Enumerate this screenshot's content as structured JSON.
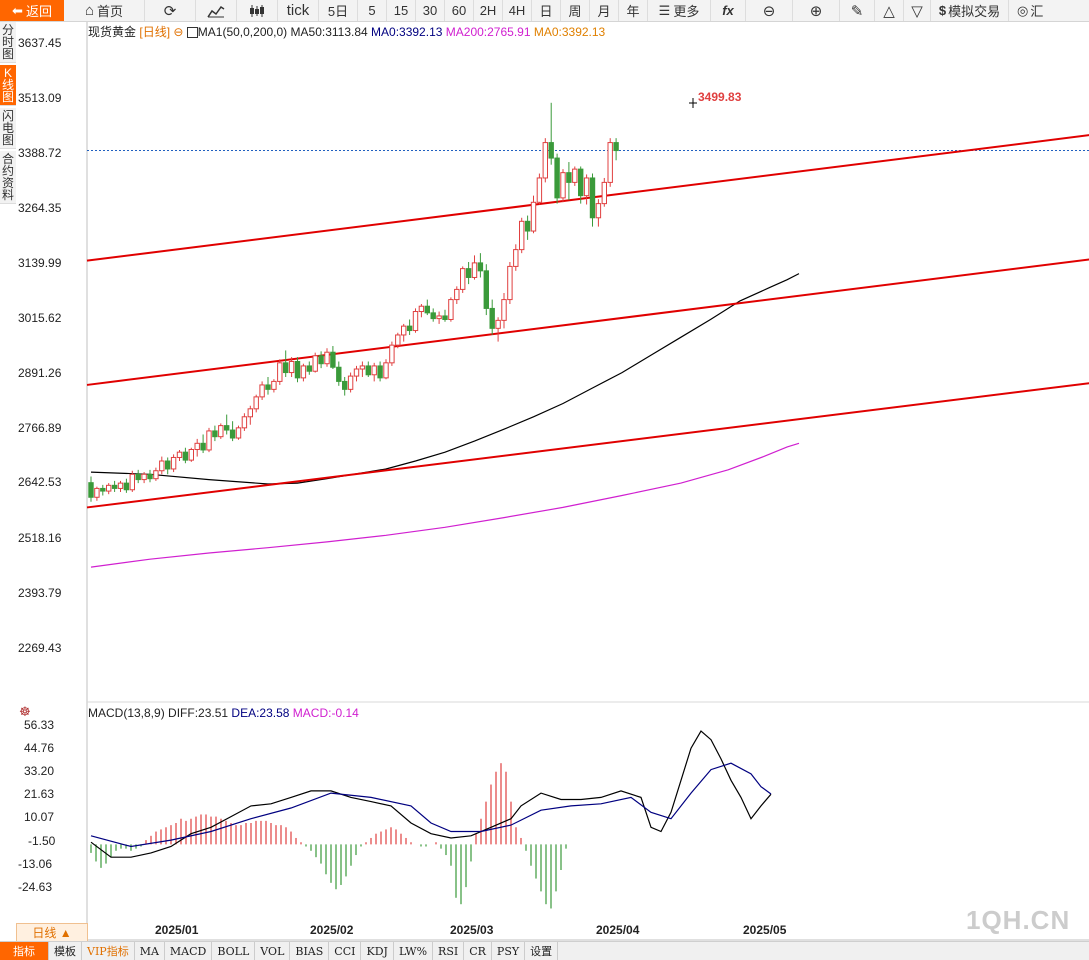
{
  "toolbar": {
    "back": "返回",
    "home": "首页",
    "tick": "tick",
    "periods": [
      "5日",
      "5",
      "15",
      "30",
      "60",
      "2H",
      "4H",
      "日",
      "周",
      "月",
      "年"
    ],
    "more": "更多",
    "fx": "fx",
    "simulated_trade": "模拟交易",
    "cut_label": "汇"
  },
  "side_tabs": [
    "分时图",
    "K线图",
    "闪电图",
    "合约资料"
  ],
  "main_chart": {
    "instrument": "现货黄金",
    "period_tag": "[日线]",
    "ma1": "MA1(50,0,200,0)",
    "ma50": "MA50:3113.84",
    "ma0a": "MA0:3392.13",
    "ma200": "MA200:2765.91",
    "ma0b": "MA0:3392.13",
    "high_label": "3499.83",
    "y_ticks": [
      "3637.45",
      "3513.09",
      "3388.72",
      "3264.35",
      "3139.99",
      "3015.62",
      "2891.26",
      "2766.89",
      "2642.53",
      "2518.16",
      "2393.79",
      "2269.43"
    ]
  },
  "macd": {
    "title": "MACD(13,8,9)",
    "diff": "DIFF:23.51",
    "dea": "DEA:23.58",
    "macd": "MACD:-0.14",
    "y_ticks": [
      "56.33",
      "44.76",
      "33.20",
      "21.63",
      "10.07",
      "-1.50",
      "-13.06",
      "-24.63"
    ]
  },
  "x_labels": [
    "2025/01",
    "2025/02",
    "2025/03",
    "2025/04",
    "2025/05"
  ],
  "bottom": {
    "period": "日线 ▲",
    "tabs": [
      "指标",
      "模板",
      "VIP指标",
      "MA",
      "MACD",
      "BOLL",
      "VOL",
      "BIAS",
      "CCI",
      "KDJ",
      "LW%",
      "RSI",
      "CR",
      "PSY",
      "设置"
    ]
  },
  "watermark": "1QH.CN",
  "colors": {
    "up": "#e04040",
    "down": "#3a9a3a",
    "trend": "#e00000",
    "ma50": "#000000",
    "ma200": "#d020d0",
    "accent": "#ff6600",
    "dea": "#000080"
  },
  "chart_data": {
    "type": "candlestick",
    "y_range": [
      2269.43,
      3637.45
    ],
    "last_close_level": 3392.13,
    "high_marker": 3499.83,
    "candles": [
      [
        2641,
        2655,
        2598,
        2608
      ],
      [
        2608,
        2632,
        2600,
        2628
      ],
      [
        2628,
        2636,
        2612,
        2622
      ],
      [
        2622,
        2640,
        2615,
        2635
      ],
      [
        2635,
        2645,
        2620,
        2628
      ],
      [
        2628,
        2645,
        2620,
        2640
      ],
      [
        2640,
        2650,
        2618,
        2625
      ],
      [
        2625,
        2668,
        2620,
        2660
      ],
      [
        2660,
        2670,
        2640,
        2648
      ],
      [
        2648,
        2665,
        2640,
        2660
      ],
      [
        2660,
        2670,
        2642,
        2650
      ],
      [
        2650,
        2675,
        2645,
        2668
      ],
      [
        2668,
        2700,
        2660,
        2690
      ],
      [
        2690,
        2698,
        2660,
        2672
      ],
      [
        2672,
        2705,
        2665,
        2698
      ],
      [
        2698,
        2715,
        2690,
        2710
      ],
      [
        2710,
        2720,
        2685,
        2692
      ],
      [
        2692,
        2720,
        2688,
        2716
      ],
      [
        2716,
        2740,
        2700,
        2730
      ],
      [
        2730,
        2750,
        2708,
        2715
      ],
      [
        2715,
        2765,
        2710,
        2758
      ],
      [
        2758,
        2770,
        2735,
        2745
      ],
      [
        2745,
        2775,
        2740,
        2770
      ],
      [
        2770,
        2795,
        2750,
        2760
      ],
      [
        2760,
        2780,
        2735,
        2742
      ],
      [
        2742,
        2770,
        2738,
        2765
      ],
      [
        2765,
        2798,
        2758,
        2790
      ],
      [
        2790,
        2815,
        2772,
        2808
      ],
      [
        2808,
        2840,
        2800,
        2835
      ],
      [
        2835,
        2870,
        2828,
        2862
      ],
      [
        2862,
        2880,
        2840,
        2852
      ],
      [
        2852,
        2875,
        2845,
        2870
      ],
      [
        2870,
        2920,
        2862,
        2912
      ],
      [
        2912,
        2940,
        2880,
        2890
      ],
      [
        2890,
        2925,
        2880,
        2915
      ],
      [
        2915,
        2925,
        2868,
        2878
      ],
      [
        2878,
        2910,
        2870,
        2905
      ],
      [
        2905,
        2915,
        2885,
        2893
      ],
      [
        2893,
        2935,
        2890,
        2928
      ],
      [
        2928,
        2938,
        2900,
        2910
      ],
      [
        2910,
        2945,
        2903,
        2936
      ],
      [
        2936,
        2950,
        2898,
        2902
      ],
      [
        2902,
        2915,
        2860,
        2870
      ],
      [
        2870,
        2880,
        2838,
        2852
      ],
      [
        2852,
        2890,
        2845,
        2882
      ],
      [
        2882,
        2905,
        2870,
        2898
      ],
      [
        2898,
        2915,
        2880,
        2905
      ],
      [
        2905,
        2915,
        2880,
        2885
      ],
      [
        2885,
        2912,
        2870,
        2905
      ],
      [
        2905,
        2915,
        2870,
        2878
      ],
      [
        2878,
        2920,
        2875,
        2912
      ],
      [
        2912,
        2960,
        2905,
        2952
      ],
      [
        2952,
        2980,
        2945,
        2975
      ],
      [
        2975,
        3000,
        2960,
        2995
      ],
      [
        2995,
        3010,
        2975,
        2985
      ],
      [
        2985,
        3035,
        2980,
        3028
      ],
      [
        3028,
        3045,
        3015,
        3040
      ],
      [
        3040,
        3055,
        3020,
        3025
      ],
      [
        3025,
        3035,
        3005,
        3012
      ],
      [
        3012,
        3028,
        3000,
        3018
      ],
      [
        3018,
        3032,
        3005,
        3010
      ],
      [
        3010,
        3060,
        3005,
        3055
      ],
      [
        3055,
        3085,
        3045,
        3078
      ],
      [
        3078,
        3130,
        3070,
        3125
      ],
      [
        3125,
        3140,
        3090,
        3105
      ],
      [
        3105,
        3155,
        3100,
        3138
      ],
      [
        3138,
        3160,
        3105,
        3120
      ],
      [
        3120,
        3135,
        3020,
        3035
      ],
      [
        3035,
        3055,
        2975,
        2990
      ],
      [
        2990,
        3015,
        2960,
        3008
      ],
      [
        3008,
        3070,
        2990,
        3055
      ],
      [
        3055,
        3140,
        3045,
        3130
      ],
      [
        3130,
        3180,
        3120,
        3168
      ],
      [
        3168,
        3240,
        3160,
        3232
      ],
      [
        3232,
        3245,
        3190,
        3210
      ],
      [
        3210,
        3290,
        3205,
        3275
      ],
      [
        3275,
        3340,
        3270,
        3330
      ],
      [
        3330,
        3420,
        3320,
        3410
      ],
      [
        3410,
        3500,
        3360,
        3375
      ],
      [
        3375,
        3385,
        3272,
        3285
      ],
      [
        3285,
        3350,
        3275,
        3342
      ],
      [
        3342,
        3366,
        3280,
        3320
      ],
      [
        3320,
        3356,
        3312,
        3350
      ],
      [
        3350,
        3356,
        3272,
        3290
      ],
      [
        3290,
        3338,
        3270,
        3330
      ],
      [
        3330,
        3340,
        3220,
        3240
      ],
      [
        3240,
        3282,
        3220,
        3272
      ],
      [
        3272,
        3330,
        3265,
        3320
      ],
      [
        3320,
        3420,
        3310,
        3410
      ],
      [
        3410,
        3420,
        3370,
        3392
      ]
    ],
    "ma50": [
      [
        0,
        2665
      ],
      [
        10,
        2660
      ],
      [
        20,
        2648
      ],
      [
        30,
        2638
      ],
      [
        35,
        2640
      ],
      [
        40,
        2650
      ],
      [
        50,
        2672
      ],
      [
        55,
        2690
      ],
      [
        60,
        2710
      ],
      [
        65,
        2735
      ],
      [
        70,
        2762
      ],
      [
        75,
        2790
      ],
      [
        80,
        2820
      ],
      [
        85,
        2855
      ],
      [
        90,
        2890
      ],
      [
        95,
        2930
      ],
      [
        100,
        2970
      ],
      [
        105,
        3010
      ],
      [
        110,
        3052
      ],
      [
        115,
        3082
      ],
      [
        118,
        3100
      ],
      [
        120,
        3113.84
      ]
    ],
    "ma200": [
      [
        0,
        2450
      ],
      [
        10,
        2468
      ],
      [
        20,
        2482
      ],
      [
        30,
        2494
      ],
      [
        40,
        2507
      ],
      [
        50,
        2522
      ],
      [
        60,
        2540
      ],
      [
        70,
        2562
      ],
      [
        80,
        2585
      ],
      [
        90,
        2612
      ],
      [
        100,
        2640
      ],
      [
        108,
        2670
      ],
      [
        114,
        2700
      ],
      [
        118,
        2722
      ],
      [
        120,
        2730
      ]
    ],
    "trend_lines": [
      {
        "x1": 0,
        "y1": 3143,
        "x2": 177,
        "y2": 3441
      },
      {
        "x1": 0,
        "y1": 2862,
        "x2": 177,
        "y2": 3160
      },
      {
        "x1": 0,
        "y1": 2585,
        "x2": 177,
        "y2": 2880
      }
    ],
    "macd": {
      "y_range": [
        -30,
        62
      ],
      "histogram": [
        -4,
        -8,
        -11,
        -9,
        -6,
        -3,
        -2,
        -2,
        -3,
        -2,
        -1,
        2,
        4,
        6,
        7,
        8,
        9,
        10,
        12,
        11,
        12,
        13,
        14,
        14,
        13,
        13,
        12,
        11,
        10,
        9,
        9,
        10,
        10,
        11,
        11,
        11,
        10,
        9,
        9,
        8,
        6,
        3,
        1,
        -1,
        -3,
        -6,
        -9,
        -14,
        -18,
        -21,
        -19,
        -15,
        -10,
        -5,
        -1,
        1,
        3,
        5,
        6,
        7,
        8,
        7,
        5,
        3,
        1,
        0,
        -1,
        -1,
        0,
        1,
        -2,
        -5,
        -10,
        -25,
        -28,
        -20,
        -8,
        5,
        12,
        20,
        28,
        34,
        38,
        34,
        20,
        8,
        3,
        -3,
        -10,
        -16,
        -22,
        -28,
        -30,
        -22,
        -12,
        -2
      ],
      "diff": [
        [
          0,
          1
        ],
        [
          4,
          -6
        ],
        [
          8,
          -6
        ],
        [
          12,
          -4
        ],
        [
          16,
          -1
        ],
        [
          20,
          5
        ],
        [
          24,
          8
        ],
        [
          28,
          13
        ],
        [
          32,
          18
        ],
        [
          36,
          19
        ],
        [
          40,
          22
        ],
        [
          44,
          25
        ],
        [
          48,
          25
        ],
        [
          52,
          22
        ],
        [
          56,
          20
        ],
        [
          60,
          18
        ],
        [
          64,
          10
        ],
        [
          68,
          5
        ],
        [
          72,
          3
        ],
        [
          76,
          4
        ],
        [
          80,
          8
        ],
        [
          84,
          12
        ],
        [
          86,
          18
        ],
        [
          90,
          24
        ],
        [
          94,
          21
        ],
        [
          98,
          21
        ],
        [
          102,
          22
        ],
        [
          106,
          25
        ],
        [
          110,
          22
        ],
        [
          112,
          8
        ],
        [
          114,
          6
        ],
        [
          116,
          15
        ],
        [
          118,
          30
        ],
        [
          120,
          45
        ],
        [
          122,
          53
        ],
        [
          124,
          49
        ],
        [
          126,
          40
        ],
        [
          128,
          30
        ],
        [
          130,
          22
        ],
        [
          132,
          12
        ],
        [
          134,
          18
        ],
        [
          136,
          23.5
        ]
      ],
      "dea": [
        [
          0,
          4
        ],
        [
          8,
          -1
        ],
        [
          16,
          2
        ],
        [
          24,
          6
        ],
        [
          32,
          12
        ],
        [
          40,
          17
        ],
        [
          48,
          24
        ],
        [
          56,
          22
        ],
        [
          64,
          18
        ],
        [
          68,
          10
        ],
        [
          72,
          6
        ],
        [
          78,
          6
        ],
        [
          84,
          9
        ],
        [
          90,
          16
        ],
        [
          96,
          18
        ],
        [
          102,
          19
        ],
        [
          108,
          22
        ],
        [
          112,
          15
        ],
        [
          116,
          12
        ],
        [
          120,
          24
        ],
        [
          124,
          35
        ],
        [
          128,
          38
        ],
        [
          132,
          33
        ],
        [
          134,
          27
        ],
        [
          136,
          23.58
        ]
      ]
    }
  }
}
